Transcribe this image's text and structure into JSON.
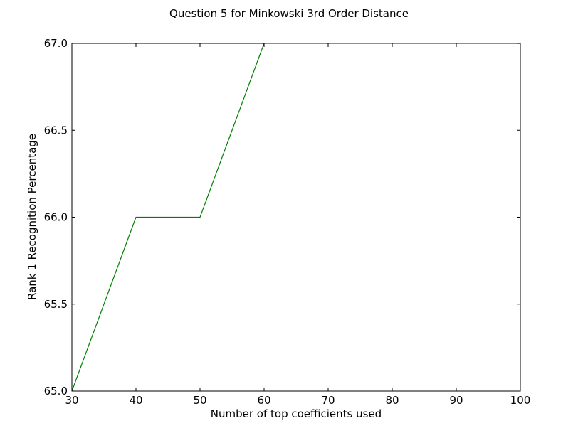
{
  "colors": {
    "background": "#ffffff",
    "axes": "#000000",
    "series_line": "#008000"
  },
  "chart_data": {
    "type": "line",
    "title": "Question 5 for Minkowski 3rd Order Distance",
    "xlabel": "Number of top coefficients used",
    "ylabel": "Rank 1 Recognition Percentage",
    "xlim": [
      30,
      100
    ],
    "ylim": [
      65.0,
      67.0
    ],
    "xticks": [
      30,
      40,
      50,
      60,
      70,
      80,
      90,
      100
    ],
    "xtick_labels": [
      "30",
      "40",
      "50",
      "60",
      "70",
      "80",
      "90",
      "100"
    ],
    "yticks": [
      65.0,
      65.5,
      66.0,
      66.5,
      67.0
    ],
    "ytick_labels": [
      "65.0",
      "65.5",
      "66.0",
      "66.5",
      "67.0"
    ],
    "grid": false,
    "legend": "none",
    "series": [
      {
        "color": "#008000",
        "x": [
          30,
          40,
          50,
          60,
          70,
          80,
          90,
          100
        ],
        "y": [
          65,
          66,
          66,
          67,
          67,
          67,
          67,
          67
        ]
      }
    ]
  }
}
